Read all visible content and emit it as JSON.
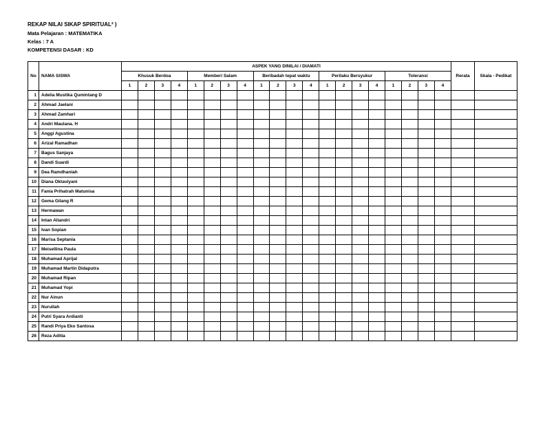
{
  "header": {
    "title": "REKAP NILAI SIKAP SPIRITUAL² )",
    "mata_pelajaran_label": "Mata Pelajaran : ",
    "mata_pelajaran_value": "MATEMATIKA",
    "kelas_label": "Kelas : ",
    "kelas_value": "7 A",
    "kd_label": "KOMPETENSI DASAR : ",
    "kd_value": "KD"
  },
  "columns": {
    "no": "No",
    "nama": "NAMA SISWA",
    "aspek_header": "ASPEK YANG DINILAI / DIAMATI",
    "aspek": [
      "Khusuk Berdoa",
      "Memberi Salam",
      "Beribadah tepat waktu",
      "Perilaku Bersyukur",
      "Toleransi"
    ],
    "sub": [
      "1",
      "2",
      "3",
      "4"
    ],
    "rerata": "Rerata",
    "skala": "Skala - Pedikat"
  },
  "students": [
    "Adelia Mustika Qumintang D",
    "Ahmad Jaelani",
    "Ahmad Zamhari",
    "Andri Maulana. H",
    "Anggi Agustina",
    "Arizal Ramadhan",
    "Bagus Sanjaya",
    "Dandi Suardi",
    "Dea Ramdhaniah",
    "Diana Oktaviyani",
    "Fania Prihatrah Matunisa",
    "Gema Gilang R",
    "Hermawan",
    "Intan Aliandri",
    "Ivan Sopian",
    "Marisa Septania",
    "Meisellina Paula",
    "Muhamad Aprijal",
    "Muhamad Martin Didaputra",
    "Muhamad Ripan",
    "Muhamad Yopi",
    "Nur Ainun",
    "Nurullah",
    "Putri Syara Ardianti",
    "Randi Priya Eko Santosa",
    "Reza Aditia"
  ]
}
